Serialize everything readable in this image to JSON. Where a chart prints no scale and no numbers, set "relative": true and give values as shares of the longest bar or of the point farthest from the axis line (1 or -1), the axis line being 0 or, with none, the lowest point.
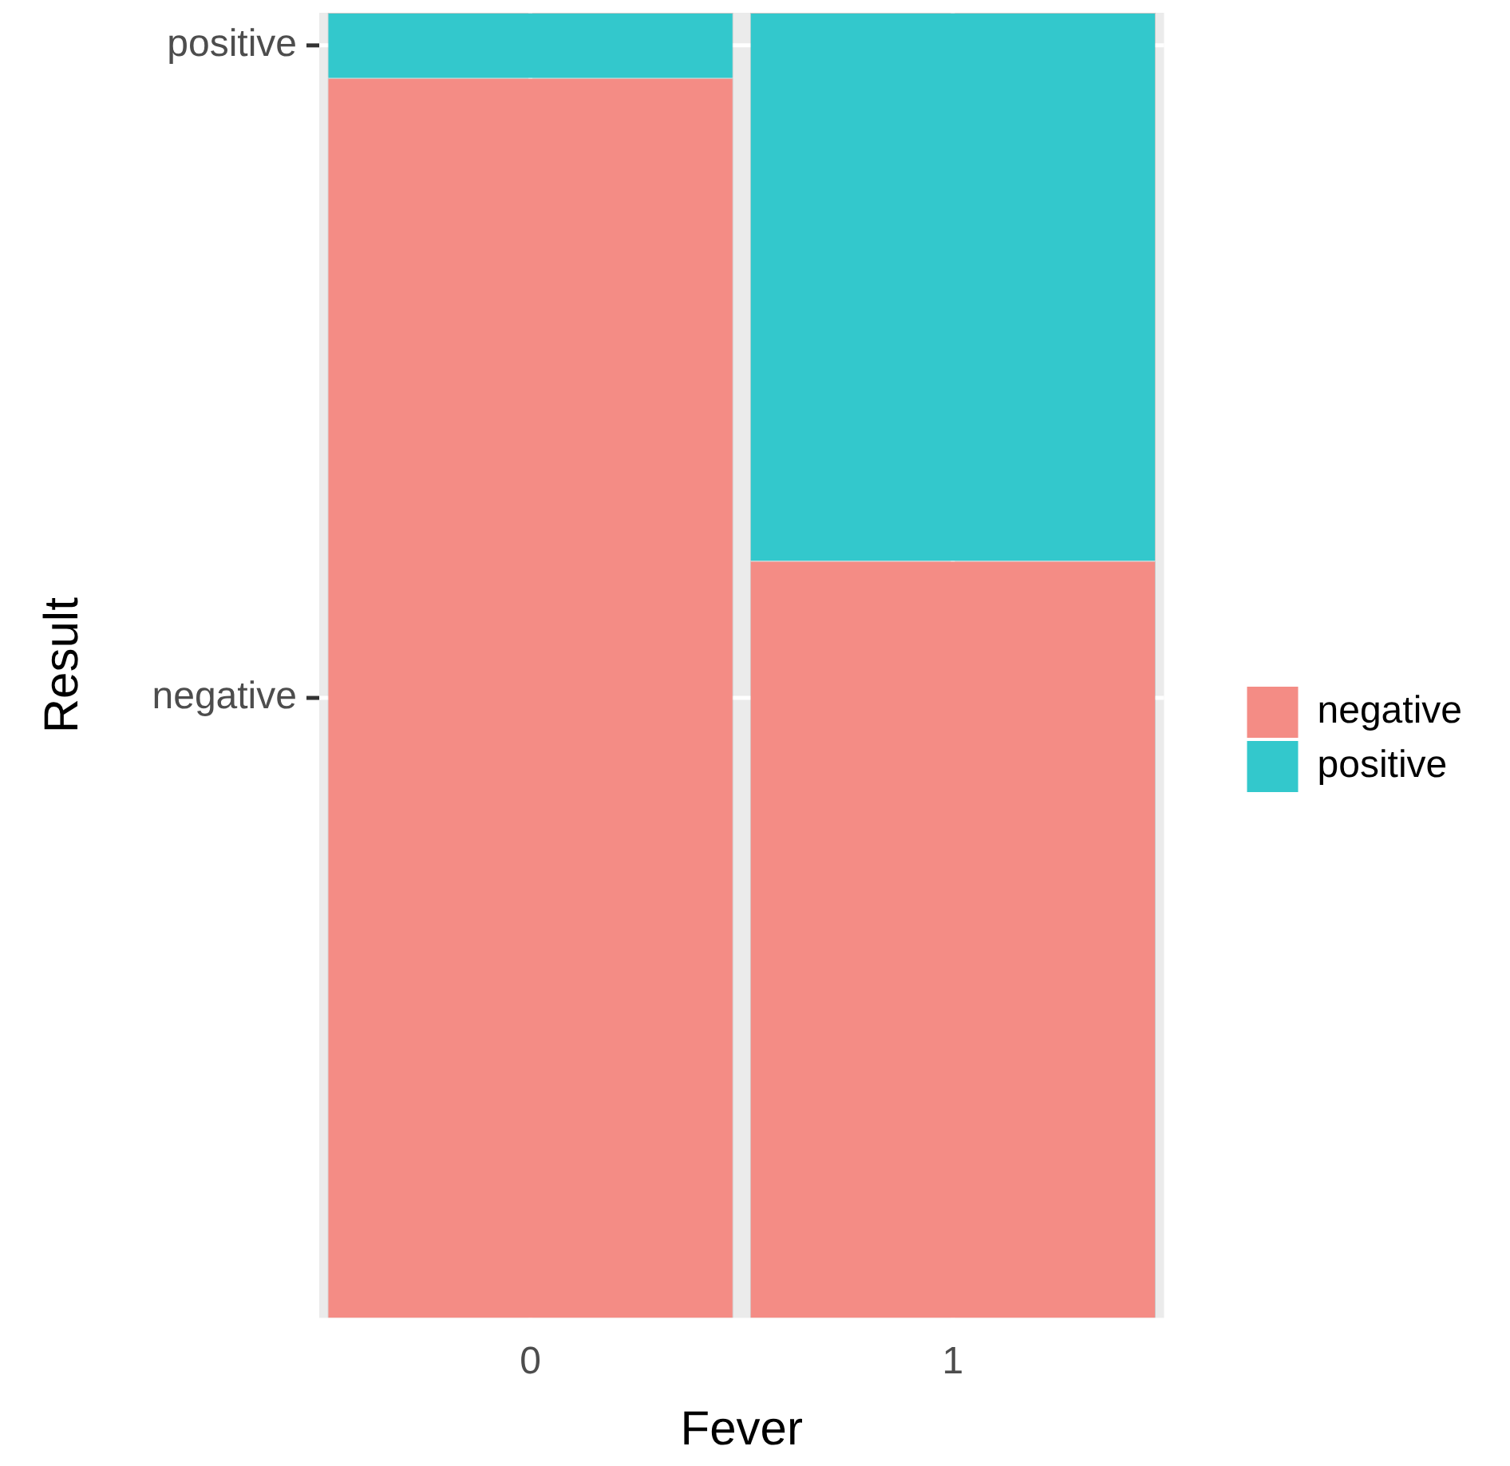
{
  "chart_data": {
    "type": "bar",
    "stacked": true,
    "relative": true,
    "xlabel": "Fever",
    "ylabel": "Result",
    "categories": [
      "0",
      "1"
    ],
    "series": [
      {
        "name": "negative",
        "color": "#f48c85",
        "values": [
          0.95,
          0.58
        ]
      },
      {
        "name": "positive",
        "color": "#33c8cc",
        "values": [
          0.05,
          0.42
        ]
      }
    ],
    "grid": true,
    "legend": "right"
  }
}
